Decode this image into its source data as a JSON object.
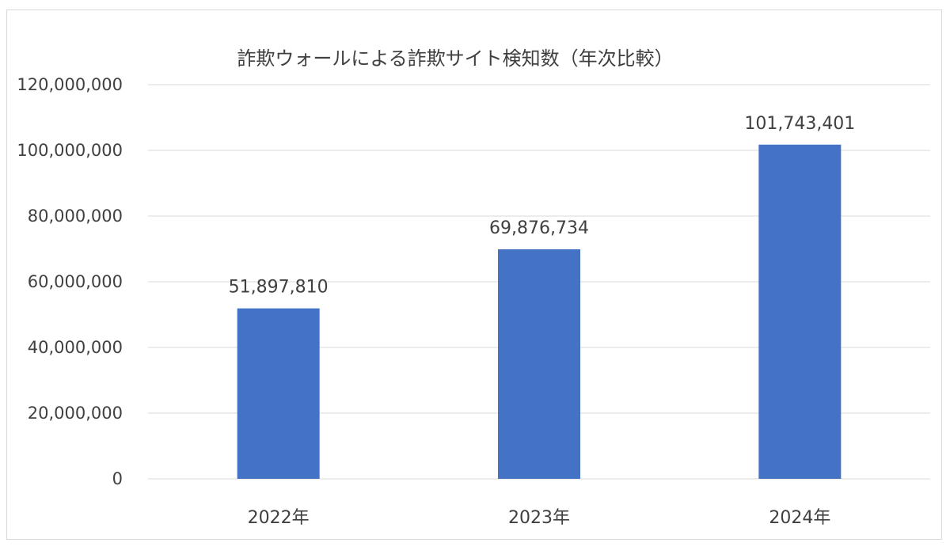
{
  "chart_data": {
    "type": "bar",
    "title": "詐欺ウォールによる詐欺サイト検知数（年次比較）",
    "categories": [
      "2022年",
      "2023年",
      "2024年"
    ],
    "values": [
      51897810,
      69876734,
      101743401
    ],
    "value_labels": [
      "51,897,810",
      "69,876,734",
      "101,743,401"
    ],
    "ylim": [
      0,
      120000000
    ],
    "yticks": [
      0,
      20000000,
      40000000,
      60000000,
      80000000,
      100000000,
      120000000
    ],
    "ytick_labels": [
      "0",
      "20,000,000",
      "40,000,000",
      "60,000,000",
      "80,000,000",
      "100,000,000",
      "120,000,000"
    ],
    "grid": true,
    "legend": "none",
    "bar_color": "#4472c4"
  }
}
